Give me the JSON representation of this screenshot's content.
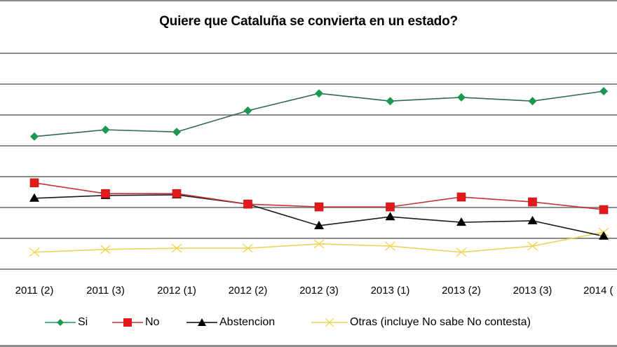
{
  "chart_data": {
    "type": "line",
    "title": "Quiere que Cataluña se convierta en un estado?",
    "xlabel": "",
    "ylabel": "",
    "categories": [
      "2011 (2)",
      "2011 (3)",
      "2012 (1)",
      "2012 (2)",
      "2012 (3)",
      "2013 (1)",
      "2013 (2)",
      "2013 (3)",
      "2014 ("
    ],
    "ylim": [
      0,
      70
    ],
    "y_gridlines": [
      0,
      10,
      20,
      30,
      40,
      50,
      60,
      70
    ],
    "y_tick_labels_visible": false,
    "grid": true,
    "legend_position": "bottom",
    "series": [
      {
        "name": "Si",
        "color": "#1a9850",
        "marker": "diamond",
        "values": [
          43.0,
          45.2,
          44.5,
          51.4,
          57.0,
          54.5,
          55.7,
          54.5,
          57.7
        ]
      },
      {
        "name": "No",
        "color": "#e31a1c",
        "marker": "square",
        "values": [
          28.0,
          24.5,
          24.5,
          21.1,
          20.2,
          20.2,
          23.4,
          21.8,
          19.3
        ]
      },
      {
        "name": "Abstencion",
        "color": "#000000",
        "marker": "triangle",
        "values": [
          23.0,
          23.9,
          24.1,
          21.1,
          14.1,
          17.0,
          15.2,
          15.7,
          10.7
        ]
      },
      {
        "name": "Otras (incluye No sabe No contesta)",
        "color": "#f2d34b",
        "marker": "x",
        "values": [
          5.5,
          6.4,
          6.8,
          6.8,
          8.2,
          7.5,
          5.5,
          7.5,
          12.0
        ]
      }
    ]
  },
  "colors": {
    "gridline": "#8c8c8c",
    "si_line": "#2e6b4f",
    "no_line": "#c8303a",
    "abst_line": "#1a1a1a",
    "otras_line": "#e9d45c"
  }
}
